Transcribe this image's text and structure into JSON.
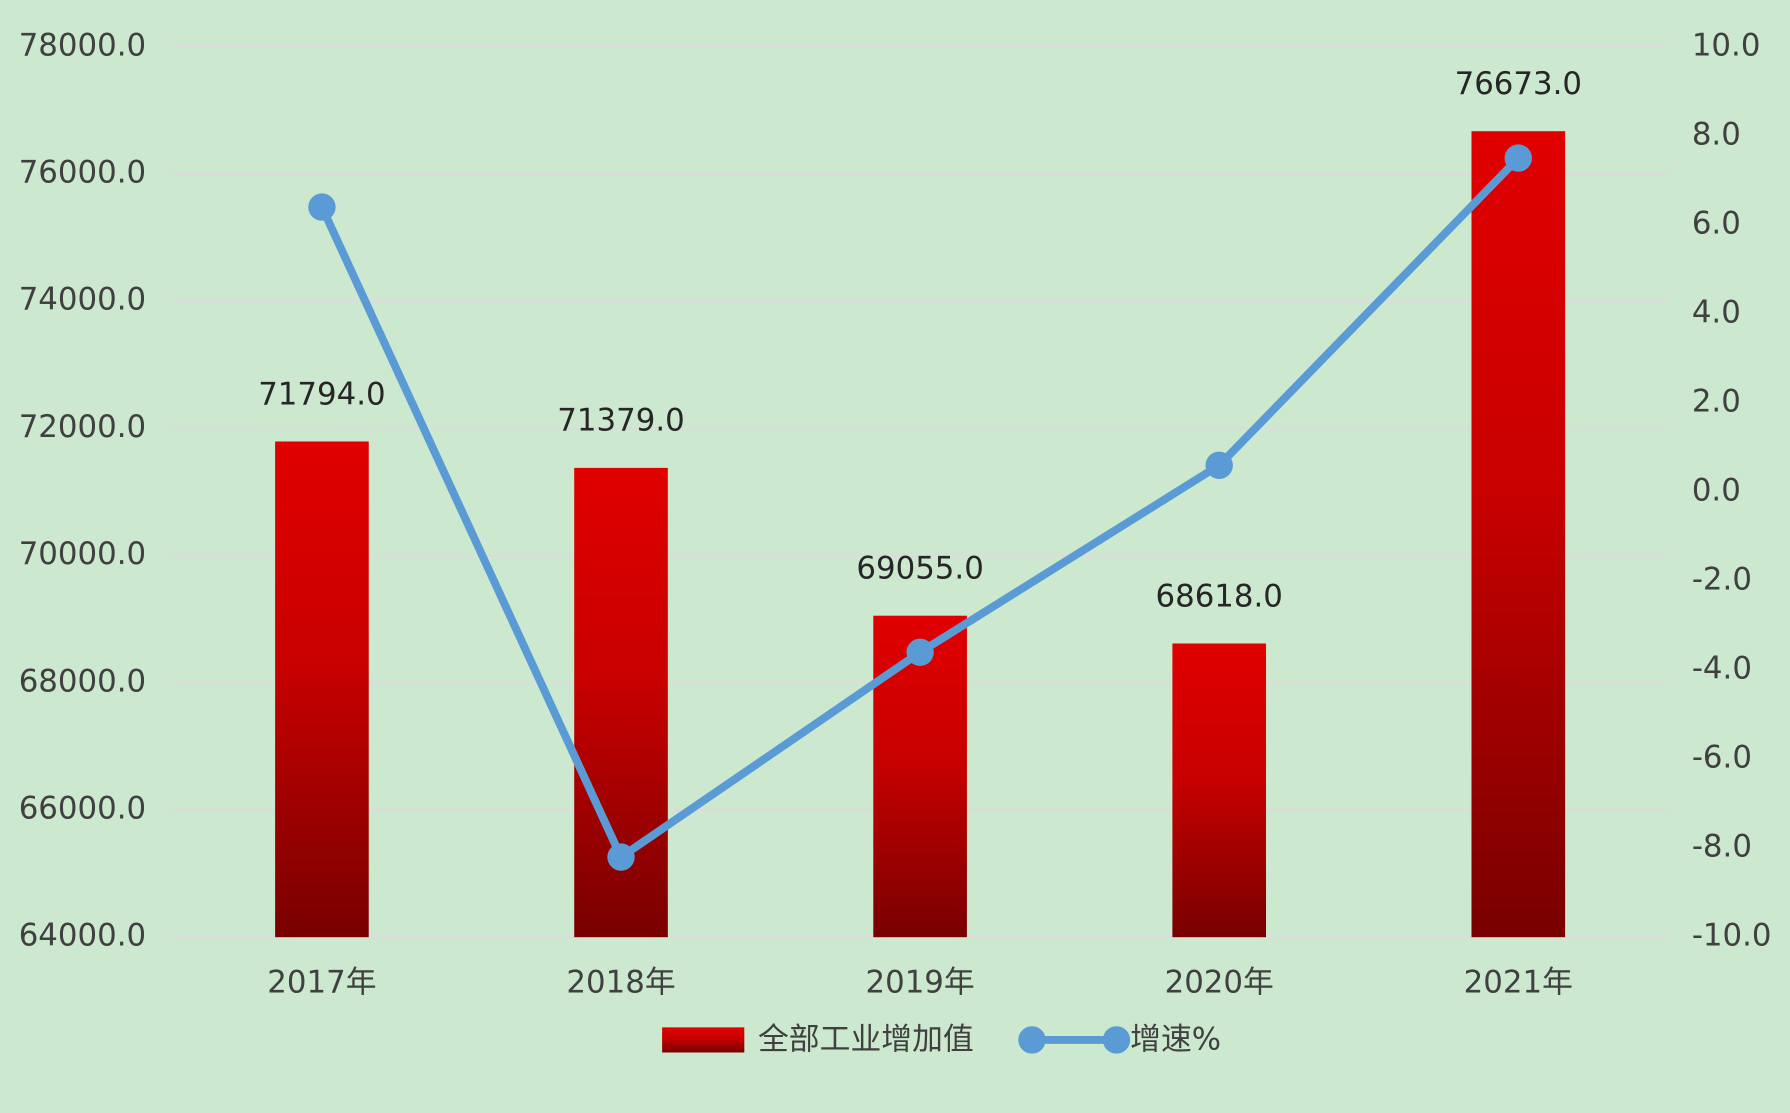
{
  "chart_data": {
    "type": "bar-line",
    "categories": [
      "2017年",
      "2018年",
      "2019年",
      "2020年",
      "2021年"
    ],
    "series": [
      {
        "name": "全部工业增加值",
        "type": "bar",
        "color": "#e00000",
        "values": [
          71794,
          71379,
          69055,
          68618,
          76673
        ],
        "value_labels": [
          "71794.0",
          "71379.0",
          "69055.0",
          "68618.0",
          "76673.0"
        ]
      },
      {
        "name": "增速%",
        "type": "line",
        "axis": "y2",
        "color": "#5b9bd5",
        "values": [
          6.4,
          -8.2,
          -3.6,
          0.6,
          7.5
        ]
      }
    ],
    "ylim": [
      64000,
      78000
    ],
    "yticks": [
      {
        "value": 64000,
        "label": "64000.0"
      },
      {
        "value": 66000,
        "label": "66000.0"
      },
      {
        "value": 68000,
        "label": "68000.0"
      },
      {
        "value": 70000,
        "label": "70000.0"
      },
      {
        "value": 72000,
        "label": "72000.0"
      },
      {
        "value": 74000,
        "label": "74000.0"
      },
      {
        "value": 76000,
        "label": "76000.0"
      },
      {
        "value": 78000,
        "label": "78000.0"
      }
    ],
    "y2lim": [
      -10,
      10
    ],
    "y2ticks": [
      {
        "value": -10,
        "label": "-10.0"
      },
      {
        "value": -8,
        "label": "-8.0"
      },
      {
        "value": -6,
        "label": "-6.0"
      },
      {
        "value": -4,
        "label": "-4.0"
      },
      {
        "value": -2,
        "label": "-2.0"
      },
      {
        "value": 0,
        "label": "0.0"
      },
      {
        "value": 2,
        "label": "2.0"
      },
      {
        "value": 4,
        "label": "4.0"
      },
      {
        "value": 6,
        "label": "6.0"
      },
      {
        "value": 8,
        "label": "8.0"
      },
      {
        "value": 10,
        "label": "10.0"
      }
    ],
    "grid": true,
    "legend": "bottom"
  }
}
